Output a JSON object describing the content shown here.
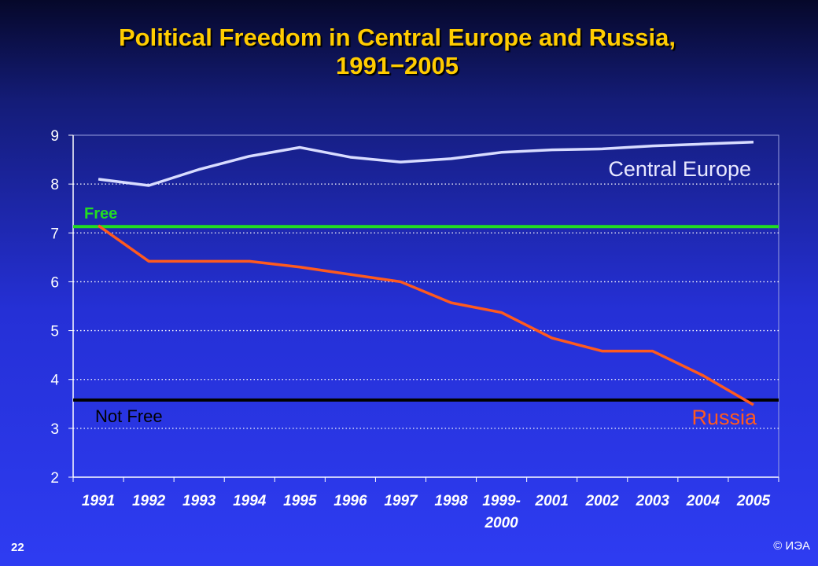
{
  "slide": {
    "number": "22",
    "copyright": "© ИЭА"
  },
  "chart_data": {
    "type": "line",
    "title": "Political Freedom in Central Europe and Russia, 1991−2005",
    "title_lines": [
      "Political Freedom in Central Europe and Russia,",
      "1991−2005"
    ],
    "categories": [
      [
        "1991"
      ],
      [
        "1992"
      ],
      [
        "1993"
      ],
      [
        "1994"
      ],
      [
        "1995"
      ],
      [
        "1996"
      ],
      [
        "1997"
      ],
      [
        "1998"
      ],
      [
        "1999-",
        "2000"
      ],
      [
        "2001"
      ],
      [
        "2002"
      ],
      [
        "2003"
      ],
      [
        "2004"
      ],
      [
        "2005"
      ]
    ],
    "ylim": [
      2,
      9
    ],
    "yticks": [
      "2",
      "3",
      "4",
      "5",
      "6",
      "7",
      "8",
      "9"
    ],
    "grid": "horizontal dotted",
    "series": [
      {
        "name": "Central Europe",
        "color": "#d8dcff",
        "values": [
          8.1,
          7.97,
          8.3,
          8.57,
          8.75,
          8.55,
          8.45,
          8.52,
          8.65,
          8.7,
          8.72,
          8.78,
          8.82,
          8.86
        ]
      },
      {
        "name": "Russia",
        "color": "#ff5a1e",
        "values": [
          7.15,
          6.42,
          6.42,
          6.42,
          6.3,
          6.15,
          6.0,
          5.57,
          5.37,
          4.85,
          4.58,
          4.58,
          4.08,
          3.48
        ]
      }
    ],
    "thresholds": [
      {
        "name": "Free",
        "value": 7.13,
        "color": "#22dd22"
      },
      {
        "name": "Not Free",
        "value": 3.58,
        "color": "#000000"
      }
    ]
  }
}
